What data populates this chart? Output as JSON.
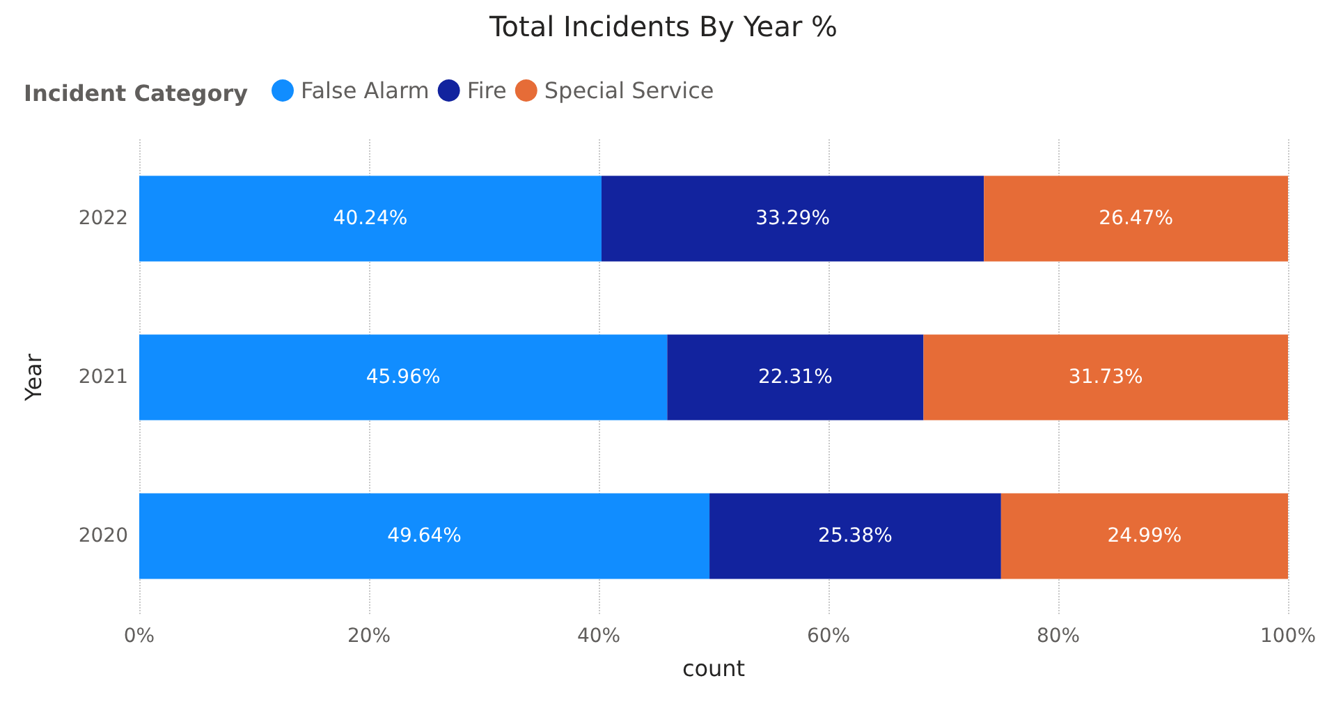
{
  "chart_data": {
    "type": "bar",
    "title": "Total Incidents By Year %",
    "xlabel": "count",
    "ylabel": "Year",
    "legend_title": "Incident Category",
    "categories": [
      "2022",
      "2021",
      "2020"
    ],
    "series": [
      {
        "name": "False Alarm",
        "color": "#118dff",
        "values": [
          40.24,
          45.96,
          49.64
        ],
        "value_labels": [
          "40.24%",
          "45.96%",
          "49.64%"
        ]
      },
      {
        "name": "Fire",
        "color": "#12239e",
        "values": [
          33.29,
          22.31,
          25.38
        ],
        "value_labels": [
          "33.29%",
          "22.31%",
          "25.38%"
        ]
      },
      {
        "name": "Special Service",
        "color": "#e66c37",
        "values": [
          26.47,
          31.73,
          24.99
        ],
        "value_labels": [
          "26.47%",
          "31.73%",
          "24.99%"
        ]
      }
    ],
    "stacked": true,
    "orientation": "horizontal",
    "xlim": [
      0,
      100
    ],
    "xticks": [
      {
        "value": 0,
        "label": "0%"
      },
      {
        "value": 20,
        "label": "20%"
      },
      {
        "value": 40,
        "label": "40%"
      },
      {
        "value": 60,
        "label": "60%"
      },
      {
        "value": 80,
        "label": "80%"
      },
      {
        "value": 100,
        "label": "100%"
      }
    ],
    "grid": "x",
    "legend": "top left"
  }
}
